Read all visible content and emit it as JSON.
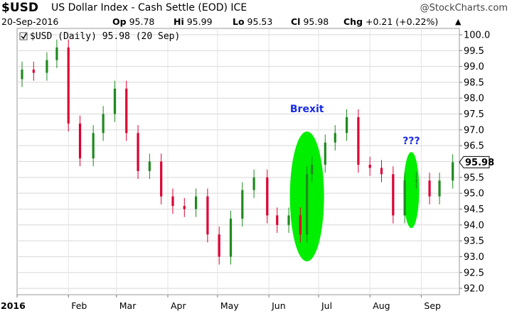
{
  "header": {
    "symbol": "$USD",
    "name": "US Dollar Index - Cash Settle (EOD)",
    "exchange": "ICE",
    "brand": "@StockCharts.com",
    "date": "20-Sep-2016",
    "open_label": "Op",
    "open": "95.78",
    "high_label": "Hi",
    "high": "95.99",
    "low_label": "Lo",
    "low": "95.53",
    "close_label": "Cl",
    "close": "95.98",
    "change_label": "Chg",
    "change": "+0.21 (+0.22%)",
    "change_arrow": "▲"
  },
  "chart_data": {
    "type": "candlestick",
    "legend": "$USD (Daily) 95.98 (20 Sep)",
    "last_value_tag": "95.98",
    "ylim": [
      91.8,
      100.2
    ],
    "y_ticks": [
      "100.0",
      "99.5",
      "99.0",
      "98.5",
      "98.0",
      "97.5",
      "97.0",
      "96.5",
      "96.0",
      "95.5",
      "95.0",
      "94.5",
      "94.0",
      "93.5",
      "93.0",
      "92.5",
      "92.0"
    ],
    "x_labels": [
      "2016",
      "Feb",
      "Mar",
      "Apr",
      "May",
      "Jun",
      "Jul",
      "Aug",
      "Sep"
    ],
    "colors": {
      "up": "#1f8a1f",
      "down": "#dd0033",
      "highlight": "#00ee00",
      "annotation": "#1a2be6"
    },
    "annotations": [
      {
        "text": "Brexit",
        "date": "2016-06-24"
      },
      {
        "text": "???",
        "date": "2016-08-26"
      }
    ],
    "series": [
      {
        "dates": [
          "2016-01-04",
          "2016-01-11",
          "2016-01-19",
          "2016-01-25",
          "2016-02-01",
          "2016-02-08",
          "2016-02-16",
          "2016-02-22",
          "2016-02-29",
          "2016-03-07",
          "2016-03-14",
          "2016-03-21",
          "2016-03-28",
          "2016-04-04",
          "2016-04-11",
          "2016-04-18",
          "2016-04-25",
          "2016-05-02",
          "2016-05-09",
          "2016-05-16",
          "2016-05-23",
          "2016-05-31",
          "2016-06-06",
          "2016-06-13",
          "2016-06-20",
          "2016-06-24",
          "2016-06-27",
          "2016-07-05",
          "2016-07-11",
          "2016-07-18",
          "2016-07-25",
          "2016-08-01",
          "2016-08-08",
          "2016-08-15",
          "2016-08-22",
          "2016-08-29",
          "2016-09-06",
          "2016-09-12",
          "2016-09-20"
        ],
        "close": [
          98.9,
          98.8,
          99.2,
          99.6,
          97.2,
          96.1,
          96.9,
          97.5,
          98.3,
          96.9,
          95.7,
          96.0,
          94.9,
          94.6,
          94.5,
          94.9,
          93.7,
          93.0,
          94.2,
          95.1,
          95.5,
          94.3,
          94.0,
          94.3,
          93.7,
          95.6,
          95.9,
          96.6,
          96.9,
          97.4,
          95.9,
          95.8,
          95.6,
          94.3,
          95.4,
          95.4,
          94.9,
          95.4,
          95.98
        ]
      }
    ]
  }
}
